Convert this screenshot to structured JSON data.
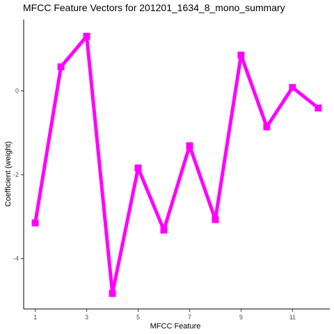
{
  "chart_data": {
    "type": "line",
    "title": "MFCC Feature Vectors for 201201_1634_8_mono_summary",
    "xlabel": "MFCC Feature",
    "ylabel": "Coefficient (weight)",
    "x": [
      1,
      2,
      3,
      4,
      5,
      6,
      7,
      8,
      9,
      10,
      11,
      12
    ],
    "series": [
      {
        "values": [
          -3.15,
          0.57,
          1.3,
          -4.83,
          -1.84,
          -3.32,
          -1.31,
          -3.07,
          0.85,
          -0.86,
          0.08,
          -0.41
        ],
        "color": "#ff00ff"
      }
    ],
    "xlim": [
      0.55,
      12.45
    ],
    "ylim": [
      -5.2,
      1.7
    ],
    "x_ticks": [
      1,
      3,
      5,
      7,
      9,
      11
    ],
    "y_ticks": [
      -4,
      -2,
      0
    ],
    "grid": false,
    "legend": "none",
    "marker": "square"
  }
}
